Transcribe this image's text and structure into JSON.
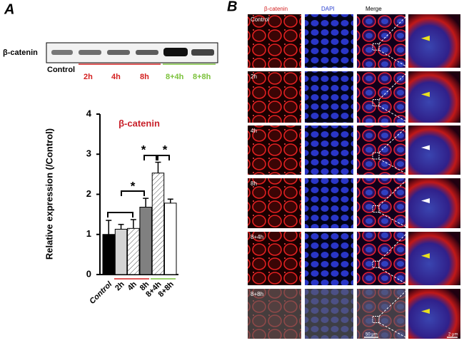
{
  "panel_a": {
    "label": "A",
    "blot": {
      "protein": "β-catenin",
      "lanes": [
        "Control",
        "2h",
        "4h",
        "8h",
        "8+4h",
        "8+8h"
      ]
    }
  },
  "chart_data": {
    "type": "bar",
    "title": "β-catenin",
    "ylabel": "Relative expression (/Control)",
    "categories": [
      "Control",
      "2h",
      "4h",
      "8h",
      "8+4h",
      "8+8h"
    ],
    "series": [
      {
        "values": [
          1.0,
          1.13,
          1.15,
          1.68,
          2.53,
          1.78
        ],
        "errors": [
          0.35,
          0.12,
          0.22,
          0.22,
          0.27,
          0.1
        ],
        "colors": [
          "#000000",
          "#d4d4d4",
          "#ececec",
          "#808080",
          "#ffffff",
          "#ffffff"
        ],
        "hatch": [
          false,
          false,
          true,
          false,
          true,
          false
        ]
      }
    ],
    "ylim": [
      0,
      4
    ],
    "yticks": [
      0,
      1,
      2,
      3,
      4
    ],
    "annotations": [
      "*",
      "*",
      "*"
    ]
  },
  "panel_b": {
    "label": "B",
    "columns": [
      "β-catenin",
      "DAPI",
      "Merge"
    ],
    "rows": [
      "Control",
      "2h",
      "4h",
      "8h",
      "8+4h",
      "8+8h"
    ],
    "scale_bars": [
      "50 μm",
      "2 μm"
    ]
  }
}
